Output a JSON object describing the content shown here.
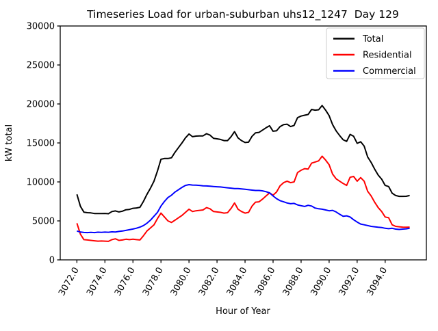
{
  "chart": {
    "title": "Timeseries Load for urban-suburban uhs12_1247  Day 129",
    "xlabel": "Hour of Year",
    "ylabel": "kW total"
  },
  "legend": {
    "position": "upper right",
    "items": [
      {
        "label": "Total",
        "color": "#000000"
      },
      {
        "label": "Residential",
        "color": "#ff0000"
      },
      {
        "label": "Commercial",
        "color": "#0000ff"
      }
    ]
  },
  "axes": {
    "x_tick_labels": [
      "3072.0",
      "3074.0",
      "3076.0",
      "3078.0",
      "3080.0",
      "3082.0",
      "3084.0",
      "3086.0",
      "3088.0",
      "3090.0",
      "3092.0",
      "3094.0"
    ],
    "x_tick_values": [
      3072,
      3074,
      3076,
      3078,
      3080,
      3082,
      3084,
      3086,
      3088,
      3090,
      3092,
      3094
    ],
    "y_tick_labels": [
      "0",
      "5000",
      "10000",
      "15000",
      "20000",
      "25000",
      "30000"
    ],
    "y_tick_values": [
      0,
      5000,
      10000,
      15000,
      20000,
      25000,
      30000
    ]
  },
  "chart_data": {
    "type": "line",
    "title": "Timeseries Load for urban-suburban uhs12_1247  Day 129",
    "xlabel": "Hour of Year",
    "ylabel": "kW total",
    "xlim": [
      3070.81,
      3096.94
    ],
    "ylim": [
      0,
      30000
    ],
    "grid": false,
    "legend_position": "upper right",
    "x": [
      3072.0,
      3072.25,
      3072.5,
      3072.75,
      3073.0,
      3073.25,
      3073.5,
      3073.75,
      3074.0,
      3074.25,
      3074.5,
      3074.75,
      3075.0,
      3075.25,
      3075.5,
      3075.75,
      3076.0,
      3076.25,
      3076.5,
      3076.75,
      3077.0,
      3077.25,
      3077.5,
      3077.75,
      3078.0,
      3078.25,
      3078.5,
      3078.75,
      3079.0,
      3079.25,
      3079.5,
      3079.75,
      3080.0,
      3080.25,
      3080.5,
      3080.75,
      3081.0,
      3081.25,
      3081.5,
      3081.75,
      3082.0,
      3082.25,
      3082.5,
      3082.75,
      3083.0,
      3083.25,
      3083.5,
      3083.75,
      3084.0,
      3084.25,
      3084.5,
      3084.75,
      3085.0,
      3085.25,
      3085.5,
      3085.75,
      3086.0,
      3086.25,
      3086.5,
      3086.75,
      3087.0,
      3087.25,
      3087.5,
      3087.75,
      3088.0,
      3088.25,
      3088.5,
      3088.75,
      3089.0,
      3089.25,
      3089.5,
      3089.75,
      3090.0,
      3090.25,
      3090.5,
      3090.75,
      3091.0,
      3091.25,
      3091.5,
      3091.75,
      3092.0,
      3092.25,
      3092.5,
      3092.75,
      3093.0,
      3093.25,
      3093.5,
      3093.75,
      3094.0,
      3094.25,
      3094.5,
      3094.75,
      3095.0,
      3095.25,
      3095.5,
      3095.75
    ],
    "series": [
      {
        "name": "Total",
        "color": "#000000",
        "values": [
          8400,
          6870,
          6120,
          6050,
          6030,
          5950,
          5950,
          5950,
          5960,
          5920,
          6200,
          6280,
          6150,
          6250,
          6430,
          6470,
          6610,
          6660,
          6750,
          7500,
          8400,
          9200,
          10100,
          11400,
          12900,
          13000,
          13000,
          13100,
          13800,
          14400,
          15000,
          15650,
          16150,
          15800,
          15880,
          15900,
          15900,
          16180,
          16000,
          15600,
          15530,
          15450,
          15300,
          15300,
          15800,
          16450,
          15650,
          15300,
          15050,
          15100,
          15850,
          16300,
          16350,
          16650,
          16950,
          17200,
          16500,
          16550,
          17100,
          17350,
          17400,
          17100,
          17250,
          18250,
          18450,
          18550,
          18650,
          19300,
          19200,
          19250,
          19800,
          19200,
          18500,
          17350,
          16550,
          15950,
          15400,
          15200,
          16100,
          15850,
          14950,
          15150,
          14600,
          13200,
          12500,
          11650,
          10880,
          10350,
          9550,
          9400,
          8550,
          8250,
          8150,
          8150,
          8160,
          8250
        ]
      },
      {
        "name": "Residential",
        "color": "#ff0000",
        "values": [
          4700,
          3300,
          2600,
          2550,
          2500,
          2450,
          2400,
          2420,
          2400,
          2380,
          2600,
          2700,
          2500,
          2550,
          2650,
          2600,
          2650,
          2600,
          2550,
          3100,
          3700,
          4100,
          4500,
          5300,
          6000,
          5500,
          5000,
          4800,
          5100,
          5400,
          5700,
          6100,
          6500,
          6200,
          6300,
          6350,
          6400,
          6700,
          6550,
          6200,
          6150,
          6100,
          6000,
          6050,
          6600,
          7300,
          6500,
          6200,
          6000,
          6100,
          6900,
          7400,
          7450,
          7800,
          8200,
          8600,
          8300,
          8700,
          9500,
          9900,
          10100,
          9900,
          10000,
          11200,
          11500,
          11700,
          11650,
          12400,
          12550,
          12700,
          13300,
          12800,
          12200,
          11000,
          10400,
          10100,
          9800,
          9550,
          10600,
          10700,
          10100,
          10550,
          10100,
          8800,
          8200,
          7400,
          6700,
          6200,
          5500,
          5400,
          4500,
          4300,
          4250,
          4200,
          4180,
          4200
        ]
      },
      {
        "name": "Commercial",
        "color": "#0000ff",
        "values": [
          3700,
          3570,
          3520,
          3500,
          3530,
          3500,
          3550,
          3530,
          3560,
          3540,
          3600,
          3580,
          3650,
          3700,
          3780,
          3870,
          3960,
          4060,
          4200,
          4400,
          4700,
          5100,
          5600,
          6100,
          6900,
          7500,
          8000,
          8300,
          8700,
          9000,
          9300,
          9550,
          9650,
          9600,
          9580,
          9550,
          9500,
          9480,
          9450,
          9400,
          9380,
          9350,
          9300,
          9250,
          9200,
          9150,
          9150,
          9100,
          9050,
          9000,
          8950,
          8900,
          8900,
          8850,
          8750,
          8600,
          8200,
          7850,
          7600,
          7450,
          7300,
          7200,
          7250,
          7050,
          6950,
          6850,
          7000,
          6900,
          6650,
          6550,
          6500,
          6400,
          6300,
          6350,
          6150,
          5850,
          5600,
          5650,
          5500,
          5150,
          4850,
          4600,
          4500,
          4400,
          4300,
          4250,
          4180,
          4150,
          4050,
          4000,
          4050,
          3950,
          3900,
          3950,
          3980,
          4050
        ]
      }
    ]
  }
}
